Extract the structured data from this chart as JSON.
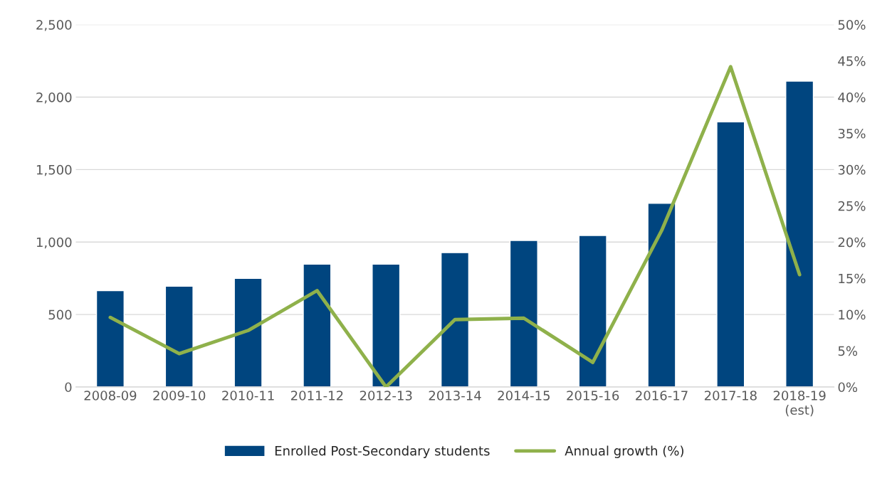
{
  "chart_data": {
    "type": "bar",
    "categories": [
      "2008-09",
      "2009-10",
      "2010-11",
      "2011-12",
      "2012-13",
      "2013-14",
      "2014-15",
      "2015-16",
      "2016-17",
      "2017-18",
      "2018-19\n(est)"
    ],
    "series": [
      {
        "name": "Enrolled Post-Secondary students",
        "color": "#00457f",
        "values": [
          665,
          695,
          750,
          848,
          848,
          927,
          1011,
          1045,
          1267,
          1829,
          2110
        ]
      },
      {
        "name": "Annual growth (%)",
        "type": "line",
        "axis": "y2",
        "color": "#8fb14b",
        "values": [
          9.6,
          4.6,
          7.8,
          13.3,
          0,
          9.3,
          9.5,
          3.4,
          21.6,
          44.2,
          15.5
        ]
      }
    ],
    "ylim": [
      0,
      2500
    ],
    "yticks": [
      0,
      500,
      {
        "value": 1000,
        "label": "1,000"
      },
      {
        "value": 1500,
        "label": "1,500"
      },
      {
        "value": 2000,
        "label": "2,000"
      },
      {
        "value": 2500,
        "label": "2,500"
      }
    ],
    "y2lim": [
      0,
      50
    ],
    "y2ticks": [
      {
        "value": 0,
        "label": "0%"
      },
      {
        "value": 5,
        "label": "5%"
      },
      {
        "value": 10,
        "label": "10%"
      },
      {
        "value": 15,
        "label": "15%"
      },
      {
        "value": 20,
        "label": "20%"
      },
      {
        "value": 25,
        "label": "25%"
      },
      {
        "value": 30,
        "label": "30%"
      },
      {
        "value": 35,
        "label": "35%"
      },
      {
        "value": 40,
        "label": "40%"
      },
      {
        "value": 45,
        "label": "45%"
      },
      {
        "value": 50,
        "label": "50%"
      }
    ],
    "grid": "y",
    "legend": "bottom"
  }
}
